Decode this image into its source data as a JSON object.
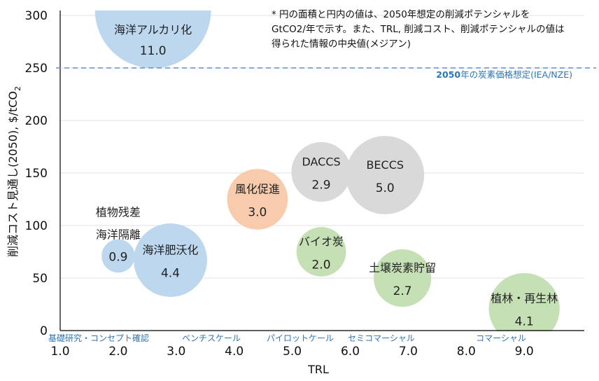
{
  "chart_data": {
    "type": "bubble",
    "xlabel": "TRL",
    "ylabel": "削減コスト見通し(2050), $/tCO",
    "ylabel_sub": "2",
    "xlim": [
      1,
      10
    ],
    "ylim": [
      0,
      300
    ],
    "x_ticks": [
      "1.0",
      "2.0",
      "3.0",
      "4.0",
      "5.0",
      "6.0",
      "7.0",
      "8.0",
      "9.0"
    ],
    "y_ticks": [
      "0",
      "50",
      "100",
      "150",
      "200",
      "250",
      "300"
    ],
    "grid": "horizontal",
    "stage_labels": [
      "基礎研究・コンセプト確認",
      "ベンチスケール",
      "パイロットケール",
      "セミコマーシャル",
      "コマーシャル"
    ],
    "reference_line": {
      "y": 250,
      "label_bold": "2050",
      "label": "年の炭素価格想定(IEA/NZE)",
      "color": "#5b8fd0"
    },
    "note": [
      "* 円の面積と円内の値は、2050年想定の削減ポテンシャルを",
      "GtCO2/年で示す。また、TRL, 削減コスト、削減ポテンシャルの値は",
      "得られた情報の中央値(メジアン)"
    ],
    "colors": {
      "ocean": "#bdd7ee",
      "mineral": "#f8cbad",
      "engineered": "#d9d9d9",
      "bio": "#c5e0b4"
    },
    "series": [
      {
        "name": "海洋アルカリ化",
        "trl": 2.6,
        "cost": 305,
        "potential": "11.0",
        "group": "ocean"
      },
      {
        "name": "植物残差",
        "name2": "海洋隔離",
        "trl": 2.0,
        "cost": 71,
        "potential": "0.9",
        "group": "ocean",
        "label_outside": true
      },
      {
        "name": "海洋肥沃化",
        "trl": 2.9,
        "cost": 67,
        "potential": "4.4",
        "group": "ocean"
      },
      {
        "name": "風化促進",
        "trl": 4.4,
        "cost": 125,
        "potential": "3.0",
        "group": "mineral"
      },
      {
        "name": "DACCS",
        "trl": 5.5,
        "cost": 151,
        "potential": "2.9",
        "group": "engineered"
      },
      {
        "name": "BECCS",
        "trl": 6.6,
        "cost": 148,
        "potential": "5.0",
        "group": "engineered"
      },
      {
        "name": "バイオ炭",
        "trl": 5.5,
        "cost": 75,
        "potential": "2.0",
        "group": "bio"
      },
      {
        "name": "土壌炭素貯留",
        "trl": 6.9,
        "cost": 50,
        "potential": "2.7",
        "group": "bio"
      },
      {
        "name": "植林・再生林",
        "trl": 9.0,
        "cost": 21,
        "potential": "4.1",
        "group": "bio"
      }
    ]
  }
}
